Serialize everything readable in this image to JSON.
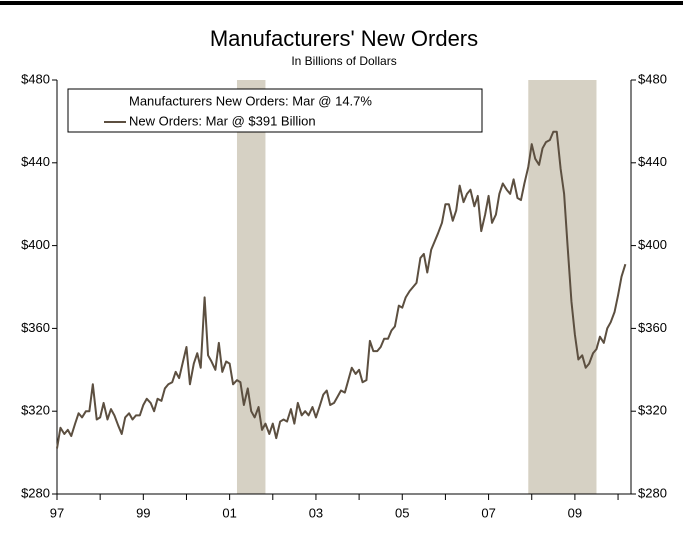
{
  "chart_data": {
    "type": "line",
    "title": "Manufacturers' New Orders",
    "subtitle": "In Billions of Dollars",
    "legend_header": "Manufacturers New Orders: Mar @ 14.7%",
    "recessions": [
      [
        2001.17,
        2001.83
      ],
      [
        2007.92,
        2009.5
      ]
    ],
    "recession_color": "#d6d1c4",
    "xlim": [
      1997,
      2010.3
    ],
    "xticks": [
      {
        "value": 1997,
        "label": "97"
      },
      {
        "value": 1999,
        "label": "99"
      },
      {
        "value": 2001,
        "label": "01"
      },
      {
        "value": 2003,
        "label": "03"
      },
      {
        "value": 2005,
        "label": "05"
      },
      {
        "value": 2007,
        "label": "07"
      },
      {
        "value": 2009,
        "label": "09"
      }
    ],
    "xminor_ticks": [
      1998,
      2000,
      2002,
      2004,
      2006,
      2008,
      2010
    ],
    "ylim": [
      280,
      480
    ],
    "yticks": [
      {
        "value": 280,
        "label": "$280"
      },
      {
        "value": 320,
        "label": "$320"
      },
      {
        "value": 360,
        "label": "$360"
      },
      {
        "value": 400,
        "label": "$400"
      },
      {
        "value": 440,
        "label": "$440"
      },
      {
        "value": 480,
        "label": "$480"
      }
    ],
    "x": [
      1997.0,
      1997.08,
      1997.17,
      1997.25,
      1997.33,
      1997.42,
      1997.5,
      1997.58,
      1997.67,
      1997.75,
      1997.83,
      1997.92,
      1998.0,
      1998.08,
      1998.17,
      1998.25,
      1998.33,
      1998.42,
      1998.5,
      1998.58,
      1998.67,
      1998.75,
      1998.83,
      1998.92,
      1999.0,
      1999.08,
      1999.17,
      1999.25,
      1999.33,
      1999.42,
      1999.5,
      1999.58,
      1999.67,
      1999.75,
      1999.83,
      1999.92,
      2000.0,
      2000.08,
      2000.17,
      2000.25,
      2000.33,
      2000.42,
      2000.5,
      2000.58,
      2000.67,
      2000.75,
      2000.83,
      2000.92,
      2001.0,
      2001.08,
      2001.17,
      2001.25,
      2001.33,
      2001.42,
      2001.5,
      2001.58,
      2001.67,
      2001.75,
      2001.83,
      2001.92,
      2002.0,
      2002.08,
      2002.17,
      2002.25,
      2002.33,
      2002.42,
      2002.5,
      2002.58,
      2002.67,
      2002.75,
      2002.83,
      2002.92,
      2003.0,
      2003.08,
      2003.17,
      2003.25,
      2003.33,
      2003.42,
      2003.5,
      2003.58,
      2003.67,
      2003.75,
      2003.83,
      2003.92,
      2004.0,
      2004.08,
      2004.17,
      2004.25,
      2004.33,
      2004.42,
      2004.5,
      2004.58,
      2004.67,
      2004.75,
      2004.83,
      2004.92,
      2005.0,
      2005.08,
      2005.17,
      2005.25,
      2005.33,
      2005.42,
      2005.5,
      2005.58,
      2005.67,
      2005.75,
      2005.83,
      2005.92,
      2006.0,
      2006.08,
      2006.17,
      2006.25,
      2006.33,
      2006.42,
      2006.5,
      2006.58,
      2006.67,
      2006.75,
      2006.83,
      2006.92,
      2007.0,
      2007.08,
      2007.17,
      2007.25,
      2007.33,
      2007.42,
      2007.5,
      2007.58,
      2007.67,
      2007.75,
      2007.83,
      2007.92,
      2008.0,
      2008.08,
      2008.17,
      2008.25,
      2008.33,
      2008.42,
      2008.5,
      2008.58,
      2008.67,
      2008.75,
      2008.83,
      2008.92,
      2009.0,
      2009.08,
      2009.17,
      2009.25,
      2009.33,
      2009.42,
      2009.5,
      2009.58,
      2009.67,
      2009.75,
      2009.83,
      2009.92,
      2010.0,
      2010.08,
      2010.17
    ],
    "series": [
      {
        "name": "New Orders: Mar @ $391 Billion",
        "color": "#5c4f40",
        "values": [
          302,
          312,
          309,
          311,
          308,
          314,
          319,
          317,
          320,
          320,
          333,
          316,
          317,
          324,
          316,
          321,
          318,
          313,
          309,
          317,
          319,
          316,
          318,
          318,
          323,
          326,
          324,
          320,
          326,
          325,
          331,
          333,
          334,
          339,
          336,
          344,
          351,
          333,
          343,
          348,
          341,
          375,
          347,
          344,
          340,
          353,
          339,
          344,
          343,
          333,
          335,
          334,
          323,
          331,
          320,
          317,
          322,
          311,
          314,
          309,
          314,
          307,
          315,
          316,
          315,
          321,
          314,
          324,
          318,
          320,
          318,
          322,
          317,
          322,
          328,
          330,
          323,
          324,
          327,
          330,
          329,
          335,
          341,
          338,
          340,
          334,
          335,
          354,
          349,
          349,
          351,
          355,
          355,
          359,
          361,
          371,
          370,
          375,
          378,
          380,
          382,
          394,
          396,
          387,
          398,
          402,
          406,
          411,
          420,
          420,
          412,
          417,
          429,
          421,
          425,
          427,
          419,
          424,
          407,
          415,
          424,
          411,
          415,
          425,
          430,
          427,
          425,
          432,
          423,
          422,
          430,
          438,
          449,
          442,
          439,
          447,
          450,
          451,
          455,
          455,
          437,
          425,
          400,
          373,
          357,
          345,
          347,
          341,
          343,
          348,
          350,
          356,
          353,
          360,
          363,
          368,
          376,
          385,
          391
        ]
      }
    ]
  }
}
